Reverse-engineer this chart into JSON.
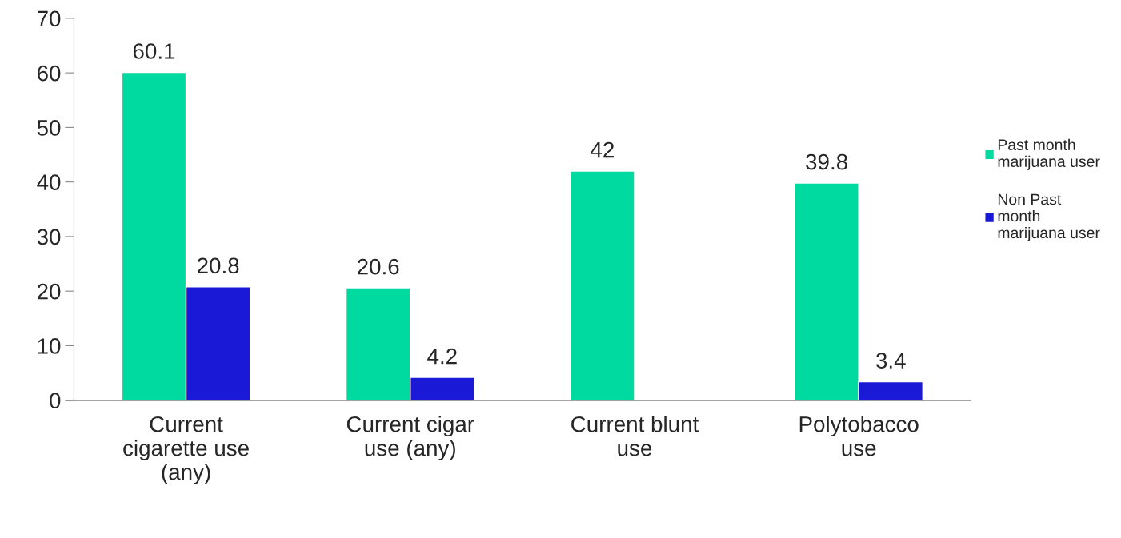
{
  "chart_data": {
    "type": "bar",
    "categories": [
      "Current\ncigarette use\n(any)",
      "Current cigar\nuse (any)",
      "Current blunt\nuse",
      "Polytobacco\nuse"
    ],
    "series": [
      {
        "name": "Past month\nmarijuana user",
        "color": "#00d9a0",
        "values": [
          60.1,
          20.6,
          42,
          39.8
        ]
      },
      {
        "name": "Non Past\nmonth\nmarijuana user",
        "color": "#1a1ad6",
        "values": [
          20.8,
          4.2,
          null,
          3.4
        ]
      }
    ],
    "ylim": [
      0,
      70
    ],
    "yticks": [
      0,
      10,
      20,
      30,
      40,
      50,
      60,
      70
    ],
    "data_labels": true,
    "legend": "right",
    "grid": false
  }
}
